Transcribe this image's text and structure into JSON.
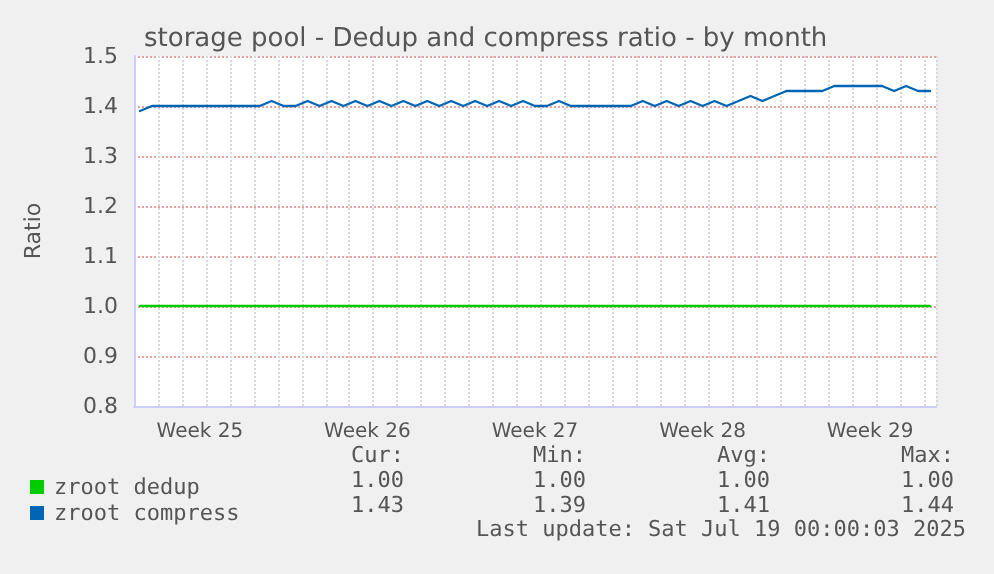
{
  "chart_data": {
    "type": "line",
    "title": "storage pool - Dedup and compress ratio - by month",
    "ylabel": "Ratio",
    "categories": [
      null,
      null,
      null,
      null,
      null,
      "Week 25",
      null,
      null,
      null,
      null,
      null,
      null,
      null,
      null,
      null,
      null,
      null,
      null,
      null,
      "Week 26",
      null,
      null,
      null,
      null,
      null,
      null,
      null,
      null,
      null,
      null,
      null,
      null,
      null,
      "Week 27",
      null,
      null,
      null,
      null,
      null,
      null,
      null,
      null,
      null,
      null,
      null,
      null,
      null,
      "Week 28",
      null,
      null,
      null,
      null,
      null,
      null,
      null,
      null,
      null,
      null,
      null,
      null,
      null,
      "Week 29",
      null,
      null,
      null,
      null,
      null
    ],
    "ylim": [
      0.8,
      1.5
    ],
    "yticks": [
      0.8,
      0.9,
      {
        "value": 1.0,
        "label": "1.0"
      },
      1.1,
      1.2,
      1.3,
      1.4,
      1.5
    ],
    "grid": true,
    "legend": "bottom left",
    "marker": "none",
    "line_style": "solid",
    "series": [
      {
        "name": "zroot dedup",
        "color": "#00cc00",
        "values": [
          1.0,
          1.0,
          1.0,
          1.0,
          1.0,
          1.0,
          1.0,
          1.0,
          1.0,
          1.0,
          1.0,
          1.0,
          1.0,
          1.0,
          1.0,
          1.0,
          1.0,
          1.0,
          1.0,
          1.0,
          1.0,
          1.0,
          1.0,
          1.0,
          1.0,
          1.0,
          1.0,
          1.0,
          1.0,
          1.0,
          1.0,
          1.0,
          1.0,
          1.0,
          1.0,
          1.0,
          1.0,
          1.0,
          1.0,
          1.0,
          1.0,
          1.0,
          1.0,
          1.0,
          1.0,
          1.0,
          1.0,
          1.0,
          1.0,
          1.0,
          1.0,
          1.0,
          1.0,
          1.0,
          1.0,
          1.0,
          1.0,
          1.0,
          1.0,
          1.0,
          1.0,
          1.0,
          1.0,
          1.0,
          1.0,
          1.0,
          1.0
        ]
      },
      {
        "name": "zroot compress",
        "color": "#0066b3",
        "values": [
          1.39,
          1.4,
          1.4,
          1.4,
          1.4,
          1.4,
          1.4,
          1.4,
          1.4,
          1.4,
          1.4,
          1.41,
          1.4,
          1.4,
          1.41,
          1.4,
          1.41,
          1.4,
          1.41,
          1.4,
          1.41,
          1.4,
          1.41,
          1.4,
          1.41,
          1.4,
          1.41,
          1.4,
          1.41,
          1.4,
          1.41,
          1.4,
          1.41,
          1.4,
          1.4,
          1.41,
          1.4,
          1.4,
          1.4,
          1.4,
          1.4,
          1.4,
          1.41,
          1.4,
          1.41,
          1.4,
          1.41,
          1.4,
          1.41,
          1.4,
          1.41,
          1.42,
          1.41,
          1.42,
          1.43,
          1.43,
          1.43,
          1.43,
          1.44,
          1.44,
          1.44,
          1.44,
          1.44,
          1.43,
          1.44,
          1.43,
          1.43
        ]
      }
    ],
    "annotations": [
      "Cur:",
      "Min:",
      "Avg:",
      "Max:",
      "1.00",
      "1.00",
      "1.00",
      "1.00",
      "1.43",
      "1.39",
      "1.41",
      "1.44",
      "Last update: Sat Jul 19 00:00:03 2025"
    ]
  }
}
